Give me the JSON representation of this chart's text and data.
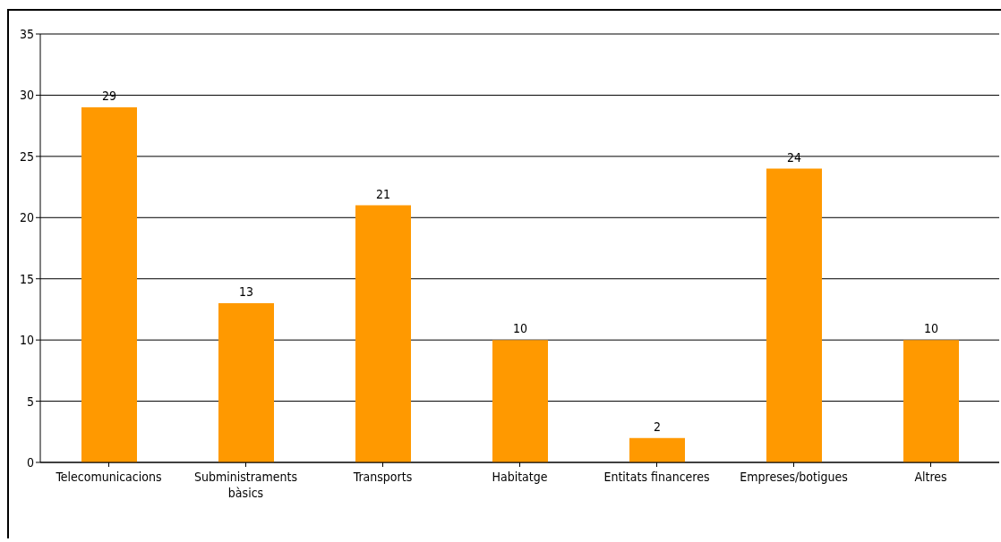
{
  "chart_data": {
    "type": "bar",
    "categories": [
      "Telecomunicacions",
      "Subministraments bàsics",
      "Transports",
      "Habitatge",
      "Entitats financeres",
      "Empreses/botigues",
      "Altres"
    ],
    "values": [
      29,
      13,
      21,
      10,
      2,
      24,
      10
    ],
    "color": "#ff9900",
    "ylim": [
      0,
      35
    ],
    "yticks": [
      0,
      5,
      10,
      15,
      20,
      25,
      30,
      35
    ],
    "grid": "y",
    "data_labels": true,
    "legend": false
  }
}
